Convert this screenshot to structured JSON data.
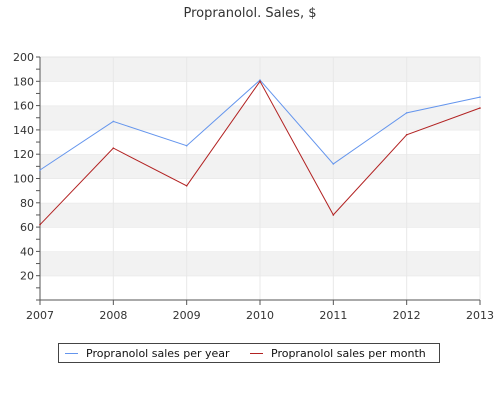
{
  "chart_data": {
    "type": "line",
    "title": "Propranolol. Sales, $",
    "xlabel": "",
    "ylabel": "",
    "categories": [
      "2007",
      "2008",
      "2009",
      "2010",
      "2011",
      "2012",
      "2013"
    ],
    "ylim": [
      0,
      200
    ],
    "yticks": [
      "20",
      "40",
      "60",
      "80",
      "100",
      "120",
      "140",
      "160",
      "180",
      "200"
    ],
    "grid": "horizontal bands",
    "legend_position": "bottom",
    "series": [
      {
        "name": "Propranolol sales per year",
        "color": "#6495ED",
        "values": [
          107,
          147,
          127,
          181,
          112,
          154,
          167
        ]
      },
      {
        "name": "Propranolol sales per month",
        "color": "#B22222",
        "values": [
          62,
          125,
          94,
          180,
          70,
          136,
          158
        ]
      }
    ]
  }
}
